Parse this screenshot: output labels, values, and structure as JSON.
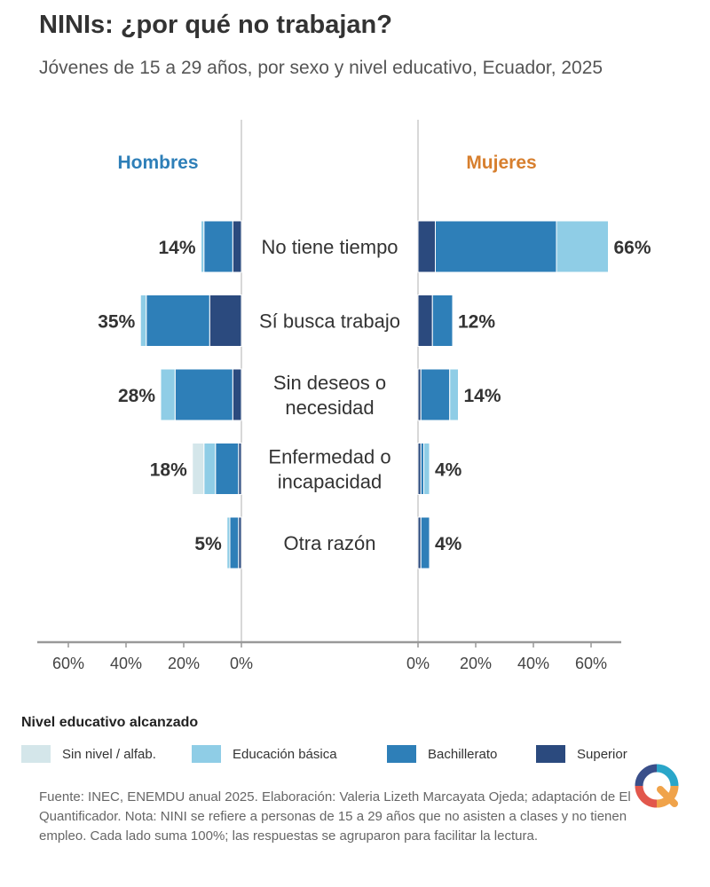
{
  "header": {
    "title": "NINIs: ¿por qué no trabajan?",
    "subtitle": "Jóvenes de 15 a 29 años, por sexo y nivel educativo, Ecuador, 2025"
  },
  "chart_data": {
    "type": "bar",
    "orientation": "horizontal",
    "stacked": true,
    "layout": "diverging-back-to-back",
    "panels": [
      {
        "name": "Hombres",
        "color": "#2e7fb8"
      },
      {
        "name": "Mujeres",
        "color": "#d77f2e"
      }
    ],
    "categories": [
      [
        "No tiene tiempo"
      ],
      [
        "Sí busca trabajo"
      ],
      [
        "Sin deseos o",
        "necesidad"
      ],
      [
        "Enfermedad o",
        "incapacidad"
      ],
      [
        "Otra razón"
      ]
    ],
    "series": [
      {
        "name": "Sin nivel / alfab.",
        "color": "#d4e6ea",
        "hombres": [
          0,
          0,
          0,
          4,
          0
        ],
        "mujeres": [
          0,
          0,
          0,
          0,
          0
        ]
      },
      {
        "name": "Educación básica",
        "color": "#8fcde6",
        "hombres": [
          1,
          2,
          5,
          4,
          1
        ],
        "mujeres": [
          18,
          0,
          3,
          2,
          0
        ]
      },
      {
        "name": "Bachillerato",
        "color": "#2e7fb8",
        "hombres": [
          10,
          22,
          20,
          8,
          3
        ],
        "mujeres": [
          42,
          7,
          10,
          1,
          3
        ]
      },
      {
        "name": "Superior",
        "color": "#2b4a7e",
        "hombres": [
          3,
          11,
          3,
          1,
          1
        ],
        "mujeres": [
          6,
          5,
          1,
          1,
          1
        ]
      }
    ],
    "totals": {
      "hombres": [
        "14%",
        "35%",
        "28%",
        "18%",
        "5%"
      ],
      "mujeres": [
        "66%",
        "12%",
        "14%",
        "4%",
        "4%"
      ]
    },
    "xlim": [
      0,
      70
    ],
    "hombres_ticks": [
      "60%",
      "40%",
      "20%",
      "0%"
    ],
    "hombres_tick_values": [
      60,
      40,
      20,
      0
    ],
    "mujeres_ticks": [
      "0%",
      "20%",
      "40%",
      "60%"
    ],
    "mujeres_tick_values": [
      0,
      20,
      40,
      60
    ],
    "legend_title": "Nivel educativo alcanzado",
    "legend_position": "bottom"
  },
  "footnote": "Fuente: INEC, ENEMDU anual 2025. Elaboración: Valeria Lizeth Marcayata Ojeda; adaptación de El Quantificador. Nota: NINI se refiere a personas de 15 a 29 años que no asisten a clases y no tienen empleo. Cada lado suma 100%; las respuestas se agruparon para facilitar la lectura.",
  "logo": {
    "icon": "el-quantificador-logo-icon"
  }
}
